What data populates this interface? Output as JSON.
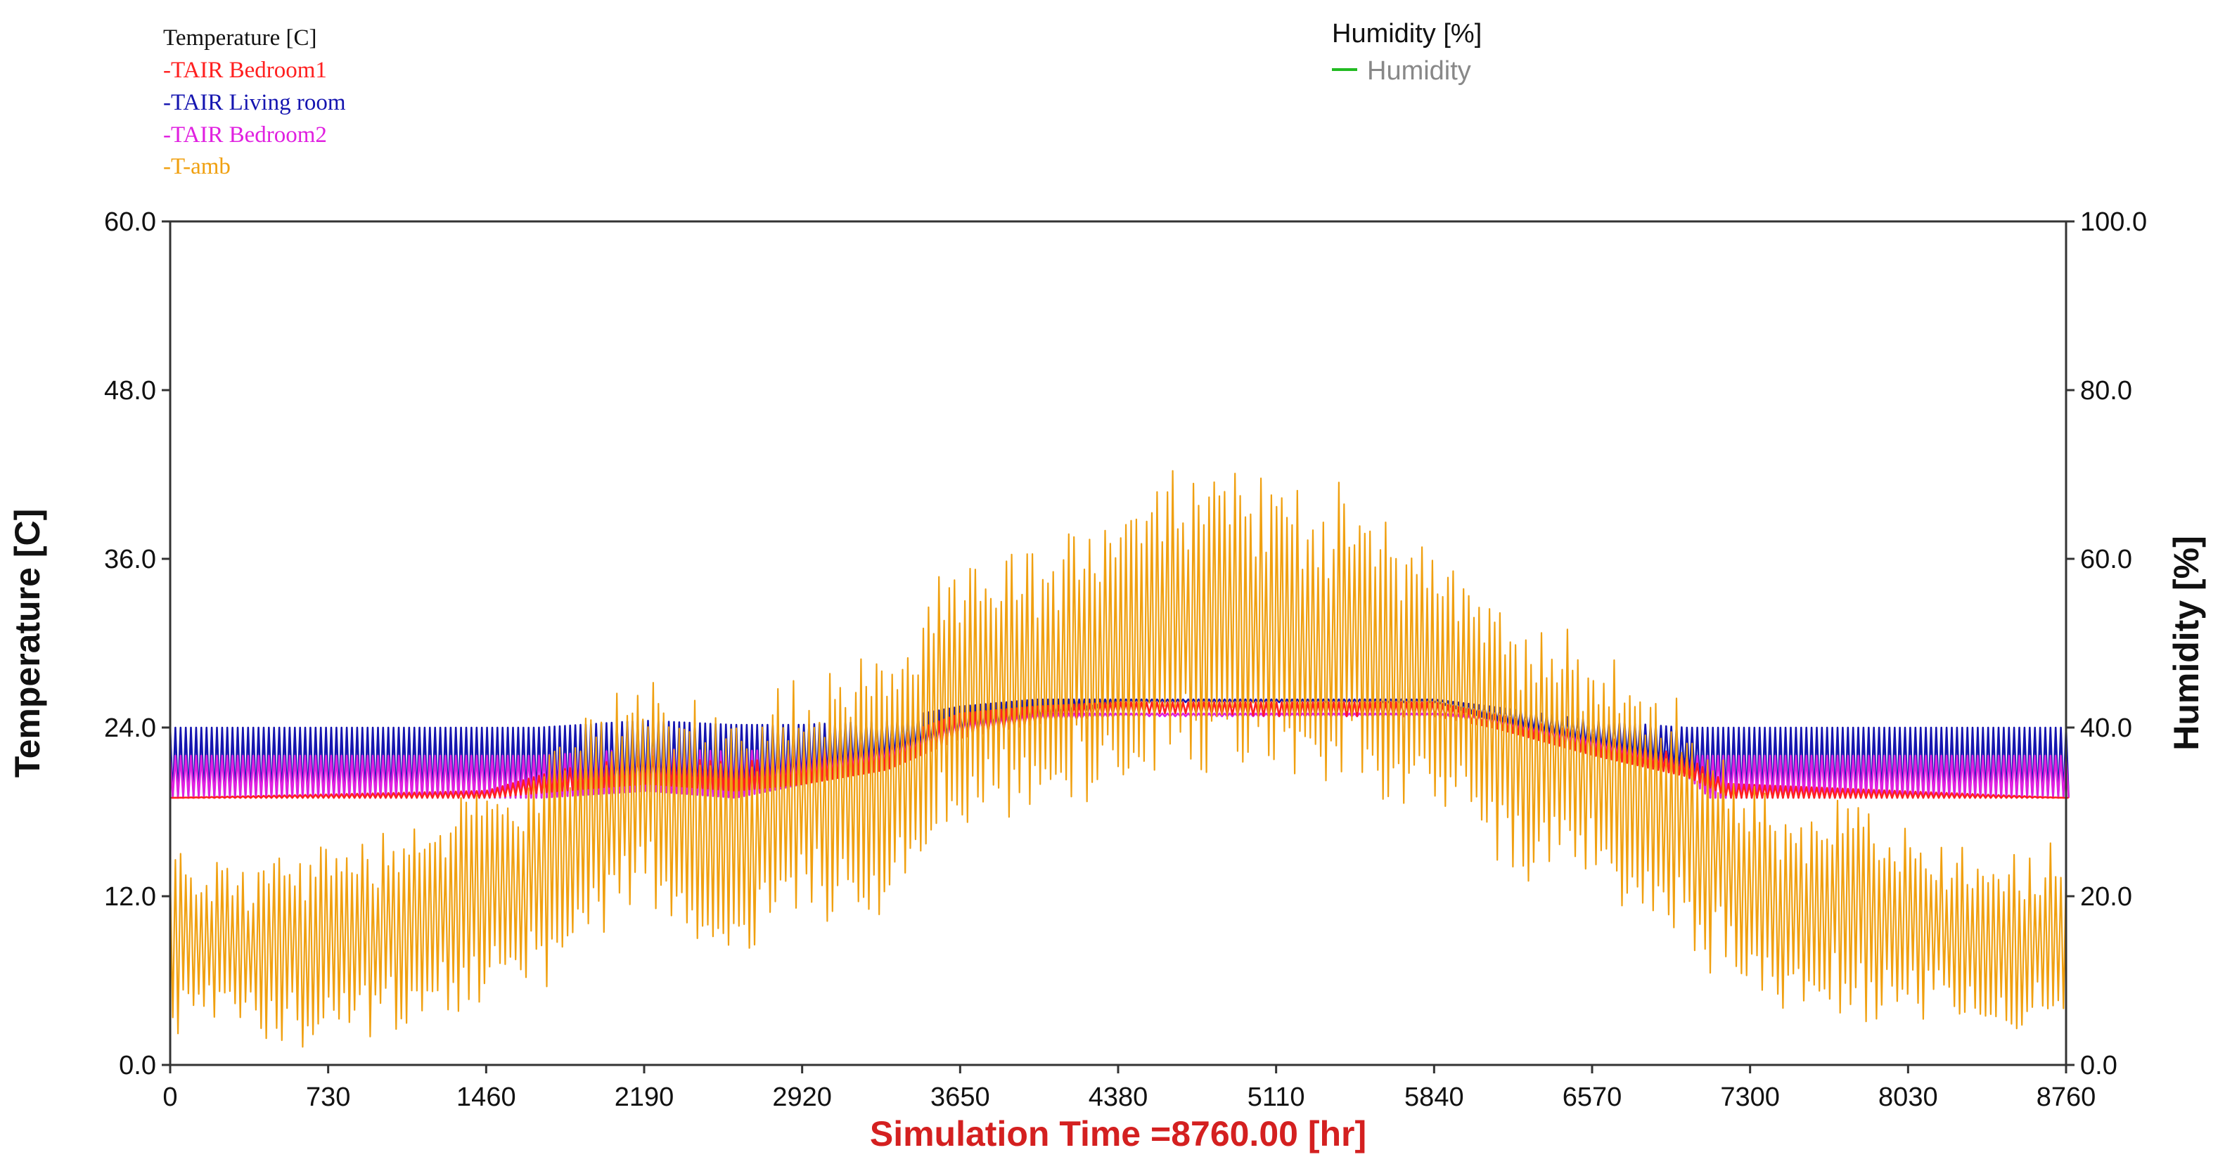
{
  "chart_data": {
    "type": "line",
    "title": "",
    "xlabel": "Simulation Time =8760.00 [hr]",
    "ylabel_left": "Temperature [C]",
    "ylabel_right": "Humidity [%]",
    "xlim": [
      0,
      8760
    ],
    "ylim_left": [
      0,
      60
    ],
    "ylim_right": [
      0,
      100
    ],
    "x_ticks": [
      0,
      730,
      1460,
      2190,
      2920,
      3650,
      4380,
      5110,
      5840,
      6570,
      7300,
      8030,
      8760
    ],
    "x_tick_labels": [
      "0",
      "730",
      "1460",
      "2190",
      "2920",
      "3650",
      "4380",
      "5110",
      "5840",
      "6570",
      "7300",
      "8030",
      "8760"
    ],
    "y_left_ticks": [
      0,
      12,
      24,
      36,
      48,
      60
    ],
    "y_left_tick_labels": [
      "0.0",
      "12.0",
      "24.0",
      "36.0",
      "48.0",
      "60.0"
    ],
    "y_right_ticks": [
      0,
      20,
      40,
      60,
      80,
      100
    ],
    "y_right_tick_labels": [
      "0.0",
      "20.0",
      "40.0",
      "60.0",
      "80.0",
      "100.0"
    ],
    "legend_left": {
      "title": "Temperature [C]",
      "entries": [
        "-TAIR Bedroom1",
        "-TAIR Living room",
        "-TAIR Bedroom2",
        "-T-amb"
      ]
    },
    "legend_right": {
      "title": "Humidity [%]",
      "entries": [
        "Humidity"
      ]
    },
    "series": [
      {
        "name": "TAIR Living room",
        "axis": "left",
        "color": "#1515b0",
        "x": [
          0,
          800,
          1700,
          2190,
          2600,
          2920,
          3300,
          3650,
          4000,
          4380,
          4750,
          5110,
          5500,
          5840,
          6100,
          6570,
          7000,
          7100,
          8760
        ],
        "low": [
          19,
          19,
          19,
          19.5,
          19,
          20,
          21.5,
          23.5,
          24.5,
          25.8,
          25.8,
          25.8,
          25.8,
          25.8,
          24.5,
          22.5,
          20.5,
          19,
          19
        ],
        "high": [
          24,
          24,
          24,
          24.5,
          24.2,
          24.2,
          24.5,
          25.5,
          26,
          26,
          26,
          26,
          26,
          26,
          25.5,
          24.5,
          24,
          24,
          24
        ]
      },
      {
        "name": "TAIR Bedroom2",
        "axis": "left",
        "color": "#e020e0",
        "x": [
          0,
          800,
          1700,
          2190,
          2600,
          2920,
          3300,
          3650,
          4000,
          4380,
          4750,
          5110,
          5500,
          5840,
          6100,
          6570,
          7000,
          7100,
          8760
        ],
        "low": [
          19,
          19,
          19,
          19.5,
          19,
          20,
          21.5,
          23.5,
          24.5,
          24.8,
          24.8,
          24.8,
          24.8,
          24.8,
          24.3,
          22.5,
          20.5,
          19,
          19
        ],
        "high": [
          22,
          22,
          22,
          22.5,
          22.3,
          22.5,
          23,
          24.5,
          25,
          25,
          25,
          25,
          25,
          25,
          24.8,
          23.5,
          22,
          22,
          22
        ]
      },
      {
        "name": "TAIR Bedroom1",
        "axis": "left",
        "color": "#ff2020",
        "x": [
          0,
          1460,
          1800,
          2190,
          2600,
          2920,
          3300,
          3650,
          4000,
          4380,
          4750,
          5110,
          5500,
          5840,
          6100,
          6570,
          7000,
          7200,
          8760
        ],
        "low": [
          19,
          19,
          19.5,
          20,
          19.5,
          20,
          21,
          23.3,
          24.3,
          25,
          25,
          24.8,
          24.8,
          24.8,
          24,
          22,
          20.5,
          19,
          19
        ],
        "high": [
          19,
          19.5,
          21,
          22,
          21.5,
          22,
          23,
          25,
          25.5,
          25.8,
          25.8,
          25.8,
          25.8,
          25.8,
          25,
          23.5,
          22,
          20,
          19
        ]
      },
      {
        "name": "T-amb",
        "axis": "left",
        "color": "#f0a010",
        "x": [
          0,
          365,
          730,
          1095,
          1460,
          1825,
          2190,
          2555,
          2920,
          3285,
          3650,
          4015,
          4380,
          4745,
          5110,
          5475,
          5840,
          6205,
          6570,
          6935,
          7300,
          7665,
          8030,
          8395,
          8760
        ],
        "mid": [
          9,
          8,
          9,
          10,
          12,
          15,
          20,
          16,
          19,
          20,
          26,
          27,
          30,
          32,
          31,
          30,
          28,
          23,
          21,
          18,
          12,
          11,
          10,
          8,
          9
        ],
        "amp": [
          6,
          6,
          6.5,
          7,
          7,
          7.5,
          8,
          8,
          8.5,
          9,
          9,
          9.5,
          10,
          11,
          10,
          10,
          9,
          8.5,
          8,
          8,
          7,
          7,
          6.5,
          6,
          6
        ],
        "min": 0,
        "max": 45
      },
      {
        "name": "Humidity",
        "axis": "right",
        "color": "#22bb22",
        "x": [],
        "values": []
      }
    ]
  }
}
